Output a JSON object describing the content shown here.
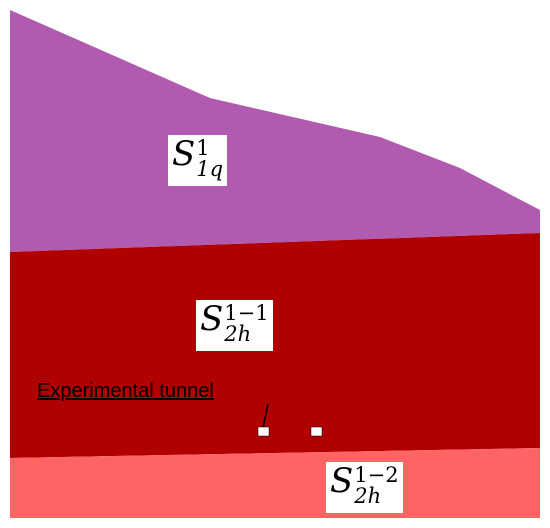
{
  "figure": {
    "layers": [
      {
        "id": "q1",
        "color": "#b05ab0",
        "label": {
          "base": "S",
          "sup": "1",
          "sub": "1q"
        }
      },
      {
        "id": "2h1",
        "color": "#b00000",
        "label": {
          "base": "S",
          "sup": "1−1",
          "sub": "2h"
        }
      },
      {
        "id": "2h2",
        "color": "#ff6464",
        "label": {
          "base": "S",
          "sup": "1−2",
          "sub": "2h"
        }
      }
    ],
    "annotation": {
      "text": "Experimental tunnel",
      "tunnel_color": "#ffffff"
    }
  }
}
